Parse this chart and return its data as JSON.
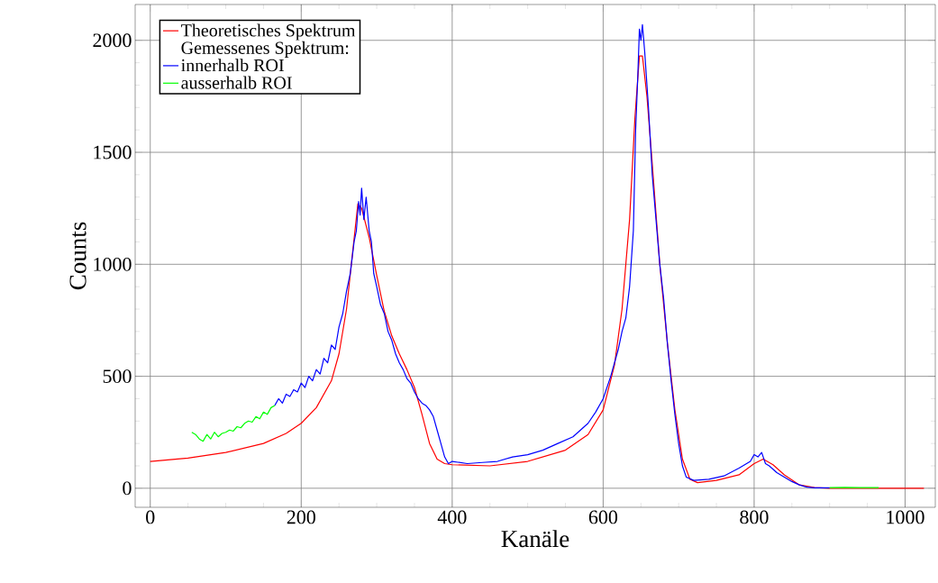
{
  "chart_data": {
    "type": "line",
    "xlabel": "Kanäle",
    "ylabel": "Counts",
    "legend_title": "Gemessenes Spektrum:",
    "legend": "top left",
    "grid": true,
    "marker": "none",
    "line_style": "solid",
    "xlim": [
      -20,
      1040
    ],
    "ylim": [
      -85,
      2160
    ],
    "xticks": [
      0,
      200,
      400,
      600,
      800,
      1000
    ],
    "yticks": [
      0,
      500,
      1000,
      1500,
      2000
    ],
    "series": [
      {
        "name": "Theoretisches Spektrum",
        "color": "#ff0000",
        "x": [
          0,
          50,
          100,
          150,
          180,
          200,
          220,
          240,
          250,
          260,
          268,
          275,
          280,
          290,
          300,
          310,
          320,
          330,
          340,
          350,
          360,
          370,
          380,
          390,
          400,
          450,
          500,
          550,
          580,
          600,
          615,
          625,
          635,
          642,
          648,
          652,
          658,
          665,
          675,
          685,
          695,
          705,
          715,
          725,
          750,
          780,
          800,
          812,
          825,
          840,
          860,
          880,
          900,
          1025
        ],
        "values": [
          120,
          135,
          160,
          200,
          245,
          290,
          360,
          480,
          600,
          800,
          1050,
          1270,
          1250,
          1120,
          950,
          790,
          680,
          600,
          530,
          450,
          330,
          200,
          130,
          110,
          105,
          100,
          120,
          170,
          240,
          350,
          550,
          800,
          1200,
          1650,
          1930,
          1930,
          1750,
          1450,
          1000,
          650,
          350,
          130,
          40,
          25,
          35,
          60,
          110,
          130,
          105,
          60,
          15,
          3,
          0,
          0
        ]
      },
      {
        "name": "innerhalb ROI",
        "color": "#0000ff",
        "x": [
          165,
          170,
          175,
          180,
          185,
          190,
          195,
          200,
          205,
          210,
          215,
          220,
          225,
          230,
          235,
          240,
          245,
          250,
          255,
          260,
          265,
          270,
          273,
          276,
          278,
          280,
          283,
          286,
          290,
          293,
          296,
          300,
          305,
          310,
          315,
          320,
          325,
          330,
          335,
          340,
          345,
          350,
          355,
          360,
          365,
          370,
          375,
          380,
          385,
          390,
          395,
          400,
          420,
          440,
          460,
          480,
          500,
          520,
          540,
          560,
          570,
          580,
          590,
          600,
          610,
          620,
          625,
          630,
          635,
          640,
          643,
          646,
          648,
          650,
          652,
          655,
          660,
          665,
          670,
          675,
          680,
          685,
          690,
          695,
          700,
          705,
          710,
          720,
          740,
          760,
          780,
          795,
          800,
          805,
          810,
          815,
          820,
          830,
          840,
          850,
          860,
          870,
          880,
          900
        ],
        "values": [
          370,
          400,
          380,
          420,
          410,
          440,
          430,
          470,
          450,
          500,
          480,
          530,
          510,
          580,
          560,
          640,
          620,
          720,
          780,
          880,
          960,
          1100,
          1150,
          1280,
          1220,
          1340,
          1200,
          1300,
          1150,
          1100,
          960,
          900,
          820,
          780,
          700,
          660,
          600,
          560,
          530,
          490,
          470,
          430,
          400,
          380,
          370,
          350,
          320,
          260,
          200,
          140,
          110,
          120,
          110,
          115,
          120,
          140,
          150,
          170,
          200,
          230,
          260,
          290,
          340,
          400,
          500,
          620,
          700,
          760,
          900,
          1150,
          1600,
          1850,
          2050,
          2000,
          2070,
          1950,
          1700,
          1400,
          1200,
          1000,
          850,
          650,
          480,
          330,
          200,
          100,
          50,
          35,
          40,
          55,
          90,
          120,
          150,
          140,
          160,
          110,
          100,
          70,
          50,
          30,
          15,
          5,
          2,
          2
        ]
      },
      {
        "name": "ausserhalb ROI",
        "color": "#00ff00",
        "x": [
          55,
          60,
          65,
          70,
          75,
          80,
          85,
          90,
          95,
          100,
          105,
          110,
          115,
          120,
          125,
          130,
          135,
          140,
          145,
          150,
          155,
          160,
          165,
          500,
          900,
          920,
          940,
          965
        ],
        "values": [
          250,
          240,
          220,
          210,
          240,
          220,
          250,
          230,
          245,
          250,
          260,
          255,
          275,
          270,
          290,
          300,
          295,
          320,
          310,
          340,
          330,
          360,
          370,
          null,
          3,
          4,
          3,
          3
        ]
      }
    ]
  }
}
